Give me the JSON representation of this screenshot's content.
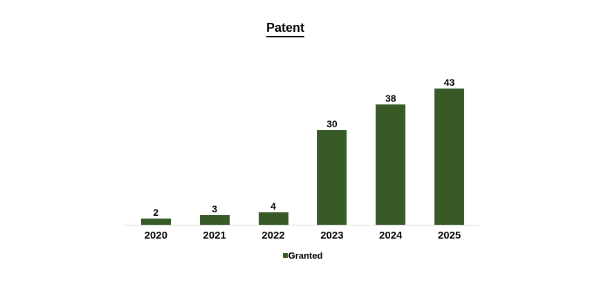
{
  "chart_data": {
    "type": "bar",
    "title": "Patent",
    "categories": [
      "2020",
      "2021",
      "2022",
      "2023",
      "2024",
      "2025"
    ],
    "series": [
      {
        "name": "Granted",
        "values": [
          2,
          3,
          4,
          30,
          38,
          43
        ]
      }
    ],
    "ylim": [
      0,
      45
    ],
    "grid": false,
    "legend_position": "bottom",
    "data_labels": true,
    "bar_color": "#375A26",
    "axis_color": "#D9D9D9"
  }
}
